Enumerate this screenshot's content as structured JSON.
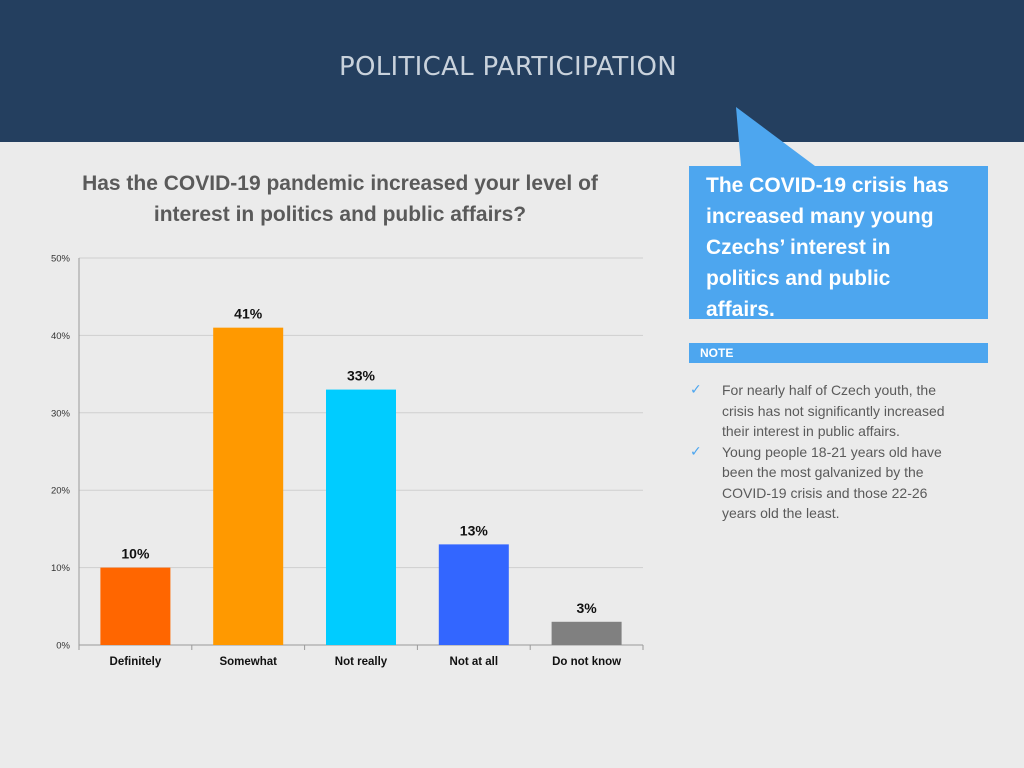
{
  "header": {
    "title": "POLITICAL PARTICIPATION"
  },
  "question": {
    "line1": "Has the COVID-19 pandemic increased your level of",
    "line2": "interest in politics and public affairs?"
  },
  "callout": {
    "lines": [
      "The COVID-19 crisis has",
      "increased many young",
      "Czechs’  interest in",
      "politics and public",
      "affairs."
    ]
  },
  "note": {
    "label": "NOTE",
    "items": [
      [
        "For nearly half of Czech youth, the",
        "crisis has not significantly increased",
        "their interest in public affairs."
      ],
      [
        "Young people 18-21 years old have",
        "been the most galvanized by the",
        "COVID-19 crisis and those 22-26",
        "years old the least."
      ]
    ]
  },
  "colors": {
    "header_bg": "#243f5f",
    "accent": "#4da6ef",
    "background": "#ebebeb"
  },
  "chart_data": {
    "type": "bar",
    "categories": [
      "Definitely",
      "Somewhat",
      "Not really",
      "Not at all",
      "Do not know"
    ],
    "values": [
      10,
      41,
      33,
      13,
      3
    ],
    "labels": [
      "10%",
      "41%",
      "33%",
      "13%",
      "3%"
    ],
    "colors": [
      "#ff6600",
      "#ff9900",
      "#00ccff",
      "#3366ff",
      "#808080"
    ],
    "ylim": [
      0,
      50
    ],
    "yticks": [
      0,
      10,
      20,
      30,
      40,
      50
    ],
    "ytick_labels": [
      "0%",
      "10%",
      "20%",
      "30%",
      "40%",
      "50%"
    ],
    "grid": true,
    "xlabel": "",
    "ylabel": ""
  }
}
